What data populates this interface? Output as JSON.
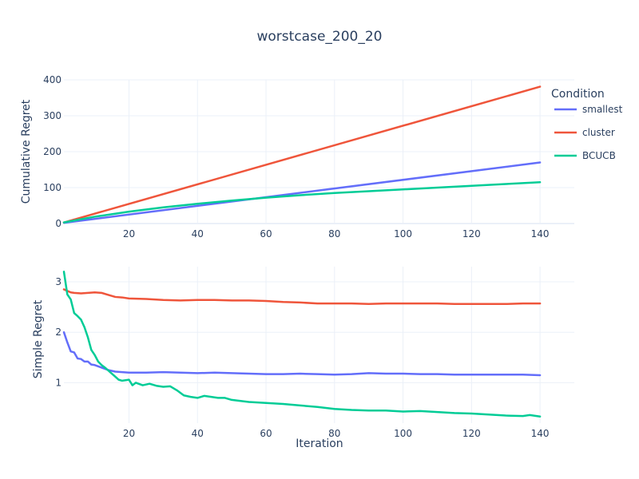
{
  "chart_data": {
    "type": "line",
    "title": "worstcase_200_20",
    "legend": {
      "title": "Condition",
      "placement": "right"
    },
    "x_ticks": [
      20,
      40,
      60,
      80,
      100,
      120,
      140
    ],
    "xlabel": "Iteration",
    "xlim": [
      1,
      150
    ],
    "colors": {
      "smallest": "#636efa",
      "cluster": "#ef553b",
      "BCUCB": "#00cc96"
    },
    "subplots": [
      {
        "name": "cumulative",
        "ylabel": "Cumulative Regret",
        "ylim": [
          0,
          400
        ],
        "y_ticks": [
          0,
          100,
          200,
          300,
          400
        ],
        "series": [
          {
            "name": "smallest",
            "x": [
              1,
              140
            ],
            "y": [
              2,
              170
            ]
          },
          {
            "name": "cluster",
            "x": [
              1,
              140
            ],
            "y": [
              3,
              381
            ]
          },
          {
            "name": "BCUCB",
            "x": [
              1,
              10,
              20,
              30,
              40,
              50,
              60,
              70,
              80,
              90,
              100,
              110,
              120,
              130,
              140
            ],
            "y": [
              3,
              19,
              33,
              45,
              55,
              64,
              72,
              79,
              85,
              90,
              95,
              100,
              105,
              110,
              115
            ]
          }
        ]
      },
      {
        "name": "simple",
        "ylabel": "Simple Regret",
        "ylim": [
          0.2,
          3.3
        ],
        "y_ticks": [
          1,
          2,
          3
        ],
        "series": [
          {
            "name": "smallest",
            "x": [
              1,
              2,
              3,
              4,
              5,
              6,
              7,
              8,
              9,
              10,
              12,
              14,
              16,
              18,
              20,
              25,
              30,
              35,
              40,
              45,
              50,
              55,
              60,
              65,
              70,
              75,
              80,
              85,
              90,
              95,
              100,
              105,
              110,
              115,
              120,
              125,
              130,
              135,
              140
            ],
            "y": [
              2.0,
              1.8,
              1.62,
              1.6,
              1.48,
              1.47,
              1.42,
              1.42,
              1.36,
              1.35,
              1.3,
              1.25,
              1.22,
              1.21,
              1.2,
              1.2,
              1.21,
              1.2,
              1.19,
              1.2,
              1.19,
              1.18,
              1.17,
              1.17,
              1.18,
              1.17,
              1.16,
              1.17,
              1.19,
              1.18,
              1.18,
              1.17,
              1.17,
              1.16,
              1.16,
              1.16,
              1.16,
              1.16,
              1.15
            ]
          },
          {
            "name": "cluster",
            "x": [
              1,
              2,
              3,
              4,
              6,
              8,
              10,
              12,
              14,
              16,
              18,
              20,
              25,
              30,
              35,
              40,
              45,
              50,
              55,
              60,
              65,
              70,
              75,
              80,
              85,
              90,
              95,
              100,
              105,
              110,
              115,
              120,
              125,
              130,
              135,
              140
            ],
            "y": [
              2.85,
              2.82,
              2.79,
              2.78,
              2.77,
              2.78,
              2.79,
              2.78,
              2.74,
              2.7,
              2.69,
              2.67,
              2.66,
              2.64,
              2.63,
              2.64,
              2.64,
              2.63,
              2.63,
              2.62,
              2.6,
              2.59,
              2.57,
              2.57,
              2.57,
              2.56,
              2.57,
              2.57,
              2.57,
              2.57,
              2.56,
              2.56,
              2.56,
              2.56,
              2.57,
              2.57
            ]
          },
          {
            "name": "BCUCB",
            "x": [
              1,
              2,
              3,
              4,
              5,
              6,
              7,
              8,
              9,
              10,
              11,
              12,
              13,
              14,
              15,
              16,
              17,
              18,
              20,
              21,
              22,
              24,
              26,
              28,
              30,
              32,
              34,
              36,
              38,
              40,
              42,
              44,
              46,
              48,
              50,
              55,
              60,
              65,
              70,
              75,
              80,
              85,
              90,
              95,
              100,
              105,
              110,
              115,
              120,
              125,
              130,
              135,
              137,
              140
            ],
            "y": [
              3.2,
              2.75,
              2.65,
              2.38,
              2.32,
              2.25,
              2.1,
              1.9,
              1.65,
              1.55,
              1.42,
              1.35,
              1.3,
              1.24,
              1.18,
              1.12,
              1.06,
              1.04,
              1.06,
              0.95,
              1.0,
              0.95,
              0.98,
              0.94,
              0.92,
              0.93,
              0.85,
              0.75,
              0.72,
              0.7,
              0.74,
              0.72,
              0.7,
              0.7,
              0.66,
              0.62,
              0.6,
              0.58,
              0.55,
              0.52,
              0.48,
              0.46,
              0.45,
              0.45,
              0.43,
              0.44,
              0.42,
              0.4,
              0.39,
              0.37,
              0.35,
              0.34,
              0.36,
              0.33
            ]
          }
        ]
      }
    ]
  }
}
